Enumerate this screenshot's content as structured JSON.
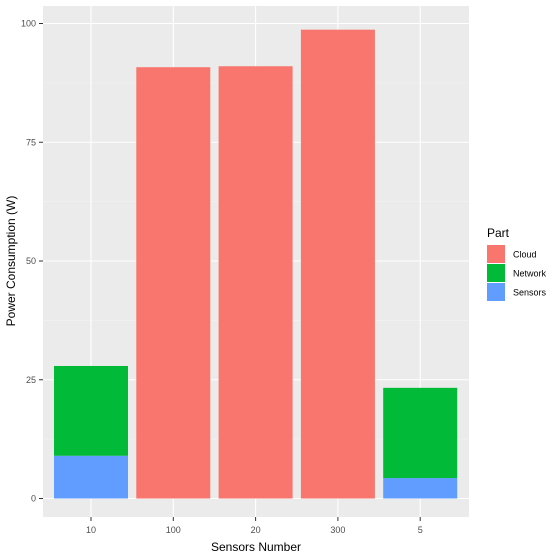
{
  "chart_data": {
    "type": "bar",
    "stacked": true,
    "categories": [
      "10",
      "100",
      "20",
      "300",
      "5"
    ],
    "series": [
      {
        "name": "Cloud",
        "color": "#F8766D",
        "values": [
          0,
          90.8,
          91.0,
          98.7,
          0
        ]
      },
      {
        "name": "Network",
        "color": "#00BA38",
        "values": [
          18.9,
          0,
          0,
          0,
          19.0
        ]
      },
      {
        "name": "Sensors",
        "color": "#619CFF",
        "values": [
          9.0,
          0,
          0,
          0,
          4.3
        ]
      }
    ],
    "stack_order_bottom_to_top": [
      "Sensors",
      "Network",
      "Cloud"
    ],
    "xlabel": "Sensors Number",
    "ylabel": "Power Consumption (W)",
    "ylim": [
      0,
      100
    ],
    "yticks": [
      "0",
      "25",
      "50",
      "75",
      "100"
    ],
    "grid": true,
    "legend": {
      "title": "Part",
      "placement": "right"
    },
    "panel_background": "#EBEBEB",
    "grid_color": "#FFFFFF"
  }
}
